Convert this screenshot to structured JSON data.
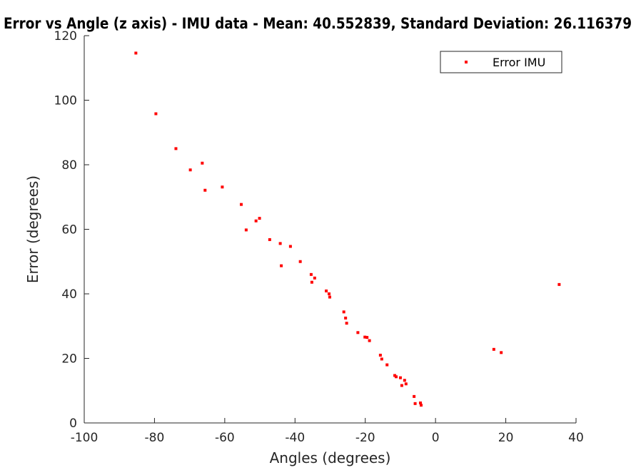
{
  "chart_data": {
    "type": "scatter",
    "title": "Error vs Angle (z axis) - IMU data - Mean: 40.552839, Standard Deviation: 26.116379",
    "xlabel": "Angles (degrees)",
    "ylabel": "Error (degrees)",
    "xlim": [
      -100,
      40
    ],
    "ylim": [
      0,
      120
    ],
    "xticks": [
      -100,
      -80,
      -60,
      -40,
      -20,
      0,
      20,
      40
    ],
    "yticks": [
      0,
      20,
      40,
      60,
      80,
      100,
      120
    ],
    "legend": {
      "position": "top-right",
      "entries": [
        "Error IMU"
      ]
    },
    "series": [
      {
        "name": "Error IMU",
        "color": "#ff0000",
        "marker": "square",
        "points": [
          [
            -85.3,
            114.6
          ],
          [
            -79.6,
            95.8
          ],
          [
            -73.9,
            85.0
          ],
          [
            -69.8,
            78.4
          ],
          [
            -66.4,
            80.5
          ],
          [
            -65.6,
            72.1
          ],
          [
            -60.7,
            73.1
          ],
          [
            -55.3,
            67.7
          ],
          [
            -53.9,
            59.8
          ],
          [
            -51.1,
            62.6
          ],
          [
            -50.1,
            63.4
          ],
          [
            -47.2,
            56.8
          ],
          [
            -44.2,
            55.6
          ],
          [
            -43.9,
            48.7
          ],
          [
            -41.3,
            54.7
          ],
          [
            -38.5,
            50.0
          ],
          [
            -35.4,
            46.0
          ],
          [
            -35.2,
            43.6
          ],
          [
            -34.4,
            44.9
          ],
          [
            -31.1,
            40.9
          ],
          [
            -30.3,
            40.0
          ],
          [
            -30.1,
            39.0
          ],
          [
            -26.1,
            34.4
          ],
          [
            -25.6,
            32.5
          ],
          [
            -25.3,
            30.9
          ],
          [
            -22.1,
            28.0
          ],
          [
            -20.1,
            26.6
          ],
          [
            -19.5,
            26.5
          ],
          [
            -18.8,
            25.5
          ],
          [
            -15.7,
            21.0
          ],
          [
            -15.3,
            19.8
          ],
          [
            -13.8,
            18.0
          ],
          [
            -11.6,
            14.7
          ],
          [
            -11.2,
            14.3
          ],
          [
            -10.0,
            14.0
          ],
          [
            -9.6,
            11.6
          ],
          [
            -8.8,
            13.2
          ],
          [
            -8.4,
            12.1
          ],
          [
            -6.1,
            8.2
          ],
          [
            -5.8,
            6.0
          ],
          [
            -4.3,
            6.2
          ],
          [
            -4.1,
            5.5
          ],
          [
            16.6,
            22.8
          ],
          [
            18.7,
            21.8
          ],
          [
            35.2,
            42.9
          ]
        ]
      }
    ]
  }
}
